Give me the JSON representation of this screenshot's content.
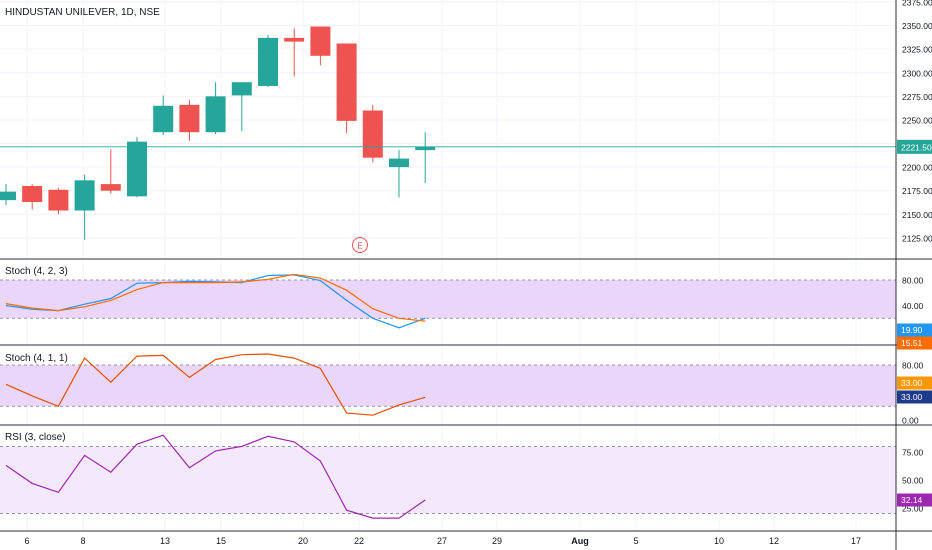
{
  "chart_data": [
    {
      "type": "candlestick",
      "title": "HINDUSTAN UNILEVER, 1D, NSE",
      "yticks": [
        "2375.00",
        "2350.00",
        "2325.00",
        "2300.00",
        "2275.00",
        "2250.00",
        "2225.00",
        "2200.00",
        "2175.00",
        "2150.00",
        "2125.00"
      ],
      "ylim": [
        2105,
        2380
      ],
      "xticks": [
        "6",
        "8",
        "13",
        "15",
        "20",
        "22",
        "27",
        "29",
        "Aug",
        "5",
        "10",
        "12",
        "17"
      ],
      "last_price": "2221.50",
      "last_price_value": 2221.5,
      "event_marker": "E",
      "candles": [
        {
          "date": "Jul 2",
          "open": 2165,
          "high": 2182,
          "low": 2160,
          "close": 2174
        },
        {
          "date": "Jul 5",
          "open": 2180,
          "high": 2182,
          "low": 2155,
          "close": 2163
        },
        {
          "date": "Jul 6",
          "open": 2176,
          "high": 2178,
          "low": 2150,
          "close": 2154
        },
        {
          "date": "Jul 7",
          "open": 2154,
          "high": 2192,
          "low": 2123,
          "close": 2186
        },
        {
          "date": "Jul 8",
          "open": 2182,
          "high": 2219,
          "low": 2172,
          "close": 2175
        },
        {
          "date": "Jul 9",
          "open": 2169,
          "high": 2232,
          "low": 2168,
          "close": 2227
        },
        {
          "date": "Jul 12",
          "open": 2237,
          "high": 2276,
          "low": 2234,
          "close": 2265
        },
        {
          "date": "Jul 13",
          "open": 2266,
          "high": 2271,
          "low": 2228,
          "close": 2237
        },
        {
          "date": "Jul 14",
          "open": 2237,
          "high": 2290,
          "low": 2235,
          "close": 2275
        },
        {
          "date": "Jul 15",
          "open": 2276,
          "high": 2288,
          "low": 2238,
          "close": 2290
        },
        {
          "date": "Jul 16",
          "open": 2286,
          "high": 2340,
          "low": 2285,
          "close": 2337
        },
        {
          "date": "Jul 19",
          "open": 2337,
          "high": 2347,
          "low": 2296,
          "close": 2333
        },
        {
          "date": "Jul 20",
          "open": 2349,
          "high": 2349,
          "low": 2308,
          "close": 2318
        },
        {
          "date": "Jul 21",
          "open": 2331,
          "high": 2331,
          "low": 2236,
          "close": 2249
        },
        {
          "date": "Jul 22",
          "open": 2260,
          "high": 2266,
          "low": 2205,
          "close": 2210
        },
        {
          "date": "Jul 23",
          "open": 2200,
          "high": 2218,
          "low": 2168,
          "close": 2209
        },
        {
          "date": "Jul 26",
          "open": 2218,
          "high": 2237,
          "low": 2183,
          "close": 2221.5
        }
      ]
    },
    {
      "type": "line",
      "title": "Stoch (4, 2, 3)",
      "yticks": [
        "80.00",
        "40.00"
      ],
      "ylim": [
        -5,
        100
      ],
      "band": [
        20,
        80
      ],
      "value_labels": [
        "19.90",
        "15.51"
      ],
      "series": [
        {
          "color": "#2196f3",
          "values": [
            40,
            34,
            32,
            42,
            51,
            75,
            76,
            78,
            77,
            76,
            87,
            88,
            79,
            48,
            20,
            5,
            19.9
          ]
        },
        {
          "color": "#ff6d00",
          "values": [
            43,
            36,
            32,
            38,
            48,
            65,
            76,
            76,
            76,
            77,
            81,
            89,
            83,
            64,
            35,
            20,
            15.51
          ]
        }
      ]
    },
    {
      "type": "line",
      "title": "Stoch (4, 1, 1)",
      "yticks": [
        "80.00",
        "0.00"
      ],
      "ylim": [
        -5,
        100
      ],
      "band": [
        20,
        80
      ],
      "value_labels": [
        "33.00",
        "33.00"
      ],
      "series": [
        {
          "color": "#e65100",
          "values": [
            52,
            35,
            20,
            90,
            55,
            93,
            94,
            62,
            88,
            95,
            96,
            90,
            75,
            10,
            7,
            22,
            33
          ]
        }
      ]
    },
    {
      "type": "line",
      "title": "RSI (3, close)",
      "yticks": [
        "75.00",
        "50.00",
        "25.00"
      ],
      "ylim": [
        12,
        87
      ],
      "band": [
        20,
        80
      ],
      "value_labels": [
        "32.14"
      ],
      "series": [
        {
          "color": "#9c27b0",
          "values": [
            63,
            47,
            39,
            72,
            57,
            82,
            90,
            61,
            76,
            80,
            89,
            84,
            67,
            23,
            16,
            16,
            32.14
          ]
        }
      ]
    }
  ]
}
